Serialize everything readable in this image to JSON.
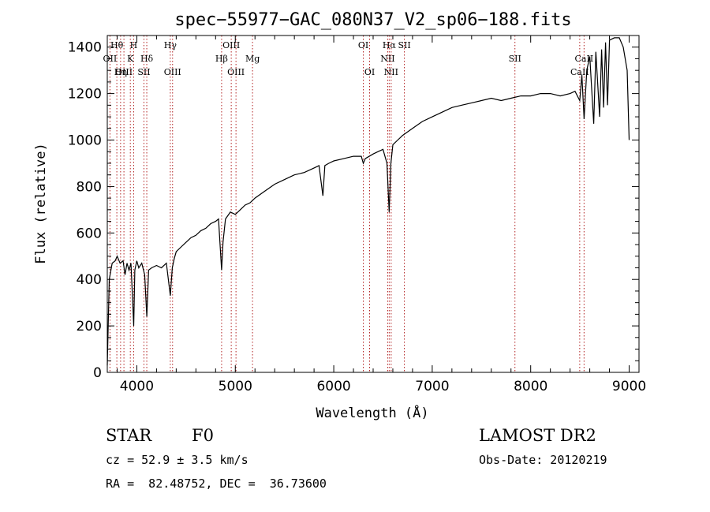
{
  "chart_data": {
    "type": "line",
    "title": "spec−55977−GAC_080N37_V2_sp06−188.fits",
    "xlabel": "Wavelength (Å)",
    "ylabel": "Flux (relative)",
    "xlim": [
      3700,
      9100
    ],
    "ylim": [
      0,
      1450
    ],
    "xticks": [
      4000,
      5000,
      6000,
      7000,
      8000,
      9000
    ],
    "yticks": [
      0,
      200,
      400,
      600,
      800,
      1000,
      1200,
      1400
    ],
    "grid": false,
    "series": [
      {
        "x": [
          3700,
          3720,
          3750,
          3780,
          3800,
          3830,
          3860,
          3880,
          3900,
          3920,
          3940,
          3960,
          3968,
          3980,
          4000,
          4020,
          4050,
          4080,
          4101,
          4120,
          4150,
          4200,
          4250,
          4300,
          4340,
          4360,
          4380,
          4400,
          4450,
          4500,
          4550,
          4600,
          4650,
          4700,
          4750,
          4800,
          4830,
          4850,
          4861,
          4875,
          4900,
          4950,
          5000,
          5050,
          5100,
          5150,
          5200,
          5300,
          5400,
          5500,
          5600,
          5700,
          5800,
          5850,
          5890,
          5910,
          5950,
          6000,
          6100,
          6200,
          6280,
          6300,
          6320,
          6400,
          6450,
          6500,
          6540,
          6563,
          6580,
          6600,
          6650,
          6700,
          6800,
          6900,
          7000,
          7100,
          7200,
          7300,
          7400,
          7500,
          7600,
          7700,
          7800,
          7900,
          8000,
          8100,
          8200,
          8300,
          8400,
          8450,
          8498,
          8520,
          8542,
          8570,
          8600,
          8640,
          8662,
          8700,
          8720,
          8740,
          8760,
          8780,
          8800,
          8850,
          8900,
          8940,
          8980,
          9000
        ],
        "y": [
          30,
          400,
          470,
          480,
          500,
          470,
          480,
          420,
          470,
          440,
          470,
          280,
          200,
          440,
          480,
          450,
          470,
          420,
          240,
          440,
          450,
          460,
          450,
          470,
          330,
          450,
          490,
          520,
          540,
          560,
          580,
          590,
          610,
          620,
          640,
          650,
          660,
          520,
          440,
          560,
          660,
          690,
          680,
          700,
          720,
          730,
          750,
          780,
          810,
          830,
          850,
          860,
          880,
          890,
          760,
          890,
          900,
          910,
          920,
          930,
          930,
          900,
          920,
          940,
          950,
          960,
          900,
          690,
          900,
          980,
          1000,
          1020,
          1050,
          1080,
          1100,
          1120,
          1140,
          1150,
          1160,
          1170,
          1180,
          1170,
          1180,
          1190,
          1190,
          1200,
          1200,
          1190,
          1200,
          1210,
          1170,
          1280,
          1090,
          1300,
          1360,
          1070,
          1380,
          1100,
          1390,
          1140,
          1420,
          1150,
          1430,
          1440,
          1440,
          1400,
          1300,
          1000
        ]
      }
    ],
    "line_markers": [
      {
        "label": "Hθ",
        "x": 3797,
        "row": 1
      },
      {
        "label": "OII",
        "x": 3727,
        "row": 2
      },
      {
        "label": "OIII",
        "x": 3869,
        "row": 3
      },
      {
        "label": "Hη",
        "x": 3835,
        "row": 3
      },
      {
        "label": "H",
        "x": 3968,
        "row": 1
      },
      {
        "label": "K",
        "x": 3934,
        "row": 2
      },
      {
        "label": "Hδ",
        "x": 4101,
        "row": 2
      },
      {
        "label": "SII",
        "x": 4072,
        "row": 3
      },
      {
        "label": "Hγ",
        "x": 4340,
        "row": 1
      },
      {
        "label": "OIII",
        "x": 4363,
        "row": 3
      },
      {
        "label": "OIII",
        "x": 4959,
        "row": 1
      },
      {
        "label": "Hβ",
        "x": 4861,
        "row": 2
      },
      {
        "label": "OIII",
        "x": 5007,
        "row": 3
      },
      {
        "label": "Mg",
        "x": 5175,
        "row": 2
      },
      {
        "label": "OI",
        "x": 6300,
        "row": 1
      },
      {
        "label": "OI",
        "x": 6364,
        "row": 3
      },
      {
        "label": "Hα",
        "x": 6563,
        "row": 1
      },
      {
        "label": "SII",
        "x": 6717,
        "row": 1
      },
      {
        "label": "NII",
        "x": 6548,
        "row": 2
      },
      {
        "label": "NII",
        "x": 6583,
        "row": 3
      },
      {
        "label": "SII",
        "x": 7840,
        "row": 2
      },
      {
        "label": "CaII",
        "x": 8542,
        "row": 2
      },
      {
        "label": "CaII",
        "x": 8498,
        "row": 3
      }
    ]
  },
  "info": {
    "object_type": "STAR",
    "subclass": "F0",
    "survey": "LAMOST DR2",
    "cz": "cz = 52.9 ± 3.5 km/s",
    "obs_date": "Obs-Date: 20120219",
    "coords": "RA =  82.48752, DEC =  36.73600"
  },
  "colors": {
    "spectrum": "#000000",
    "line_markers": "#b22222"
  }
}
